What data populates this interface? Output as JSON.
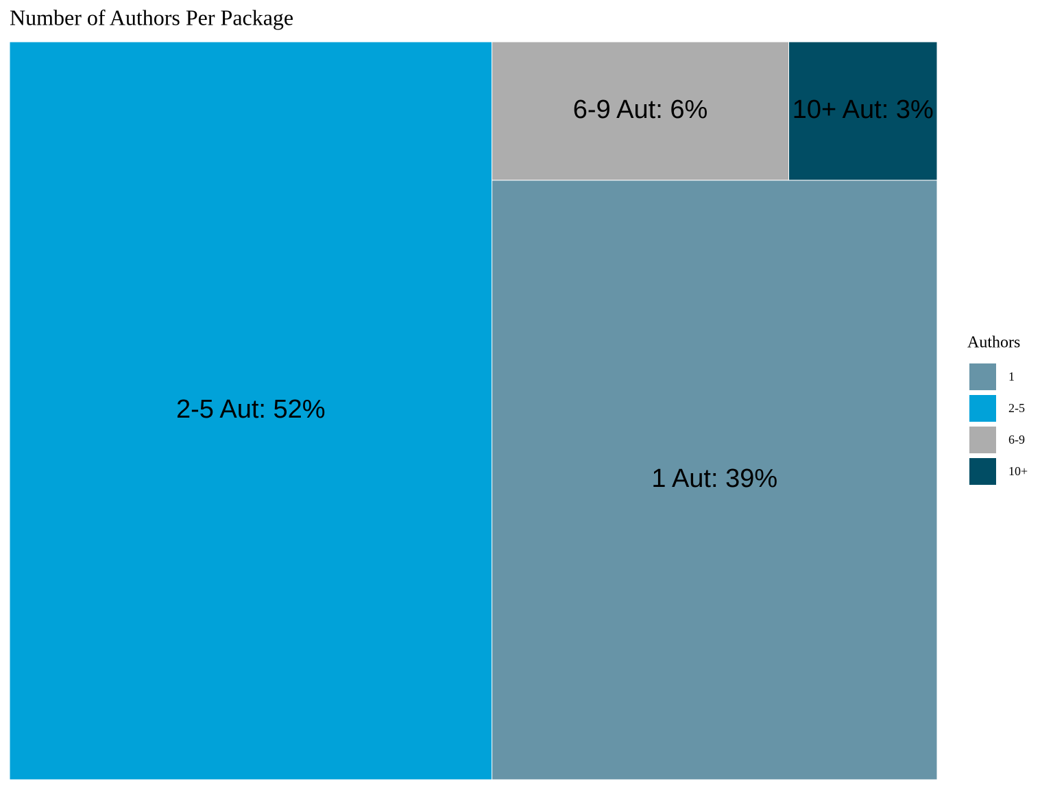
{
  "chart_data": {
    "type": "treemap",
    "title": "Number of Authors Per Package",
    "legend_title": "Authors",
    "categories": [
      "1",
      "2-5",
      "6-9",
      "10+"
    ],
    "values": [
      39,
      52,
      6,
      3
    ],
    "value_labels": [
      "1 Aut: 39%",
      "2-5 Aut: 52%",
      "6-9 Aut: 6%",
      "10+ Aut: 3%"
    ],
    "colors": [
      "#6794a7",
      "#01a2d9",
      "#adadad",
      "#014d64"
    ],
    "legend": "right"
  }
}
